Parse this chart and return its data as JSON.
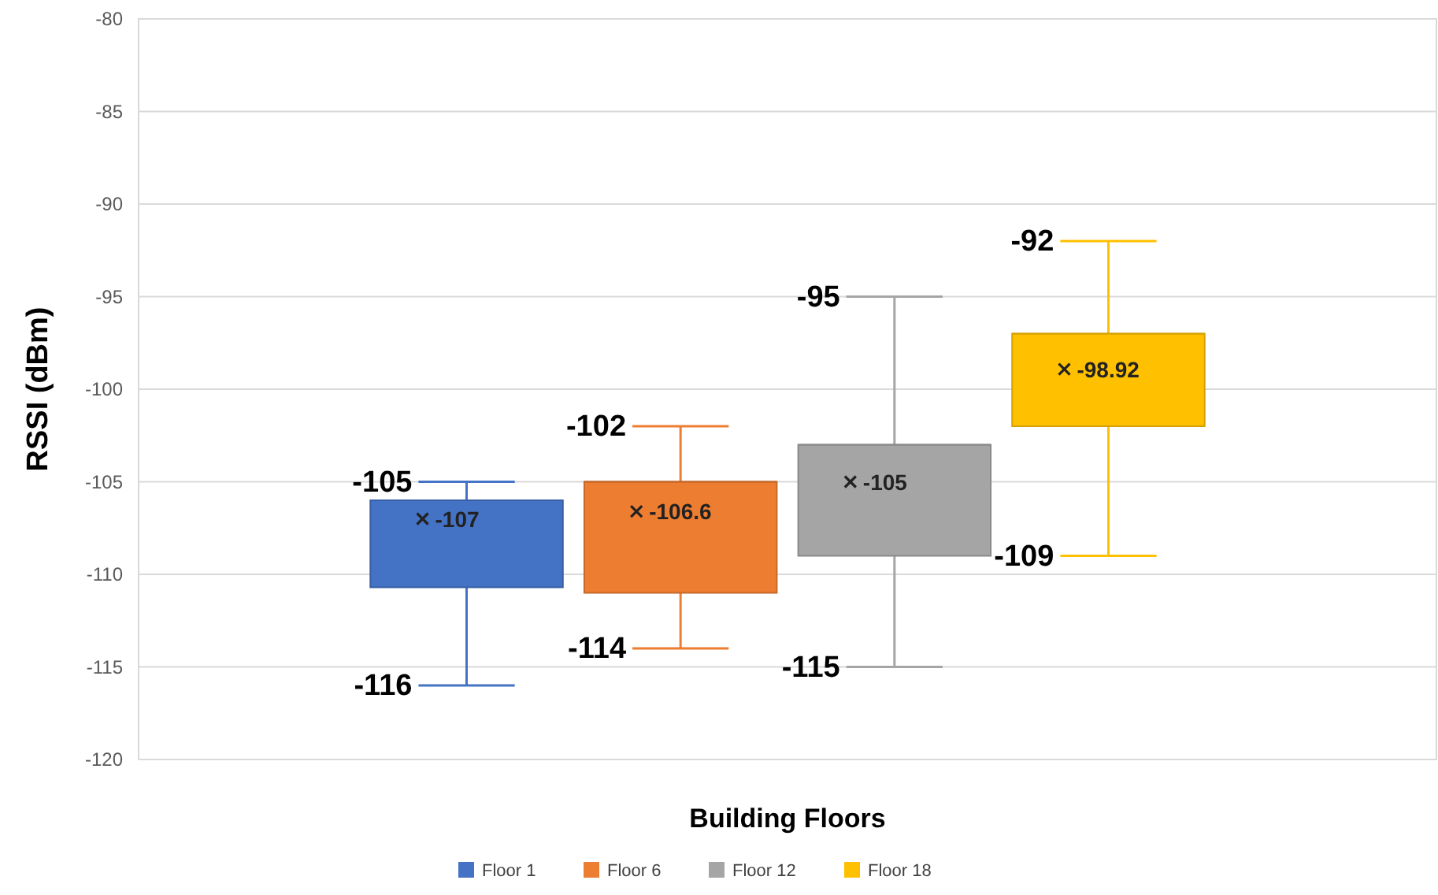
{
  "chart_data": {
    "type": "box",
    "xlabel": "Building Floors",
    "ylabel": "RSSI (dBm)",
    "categories": [
      null
    ],
    "series": [
      {
        "name": "Floor 1",
        "color": "#4472c4",
        "boxes": [
          {
            "low": -116,
            "q1": -110.7,
            "median": -106,
            "q3": -106,
            "high": -105,
            "mean": -107
          }
        ]
      },
      {
        "name": "Floor 6",
        "color": "#ed7d31",
        "boxes": [
          {
            "low": -114,
            "q1": -111,
            "median": -105,
            "q3": -105,
            "high": -102,
            "mean": -106.6
          }
        ]
      },
      {
        "name": "Floor 12",
        "color": "#a5a5a5",
        "boxes": [
          {
            "low": -115,
            "q1": -109,
            "median": -103,
            "q3": -103,
            "high": -95,
            "mean": -105
          }
        ]
      },
      {
        "name": "Floor 18",
        "color": "#ffc000",
        "boxes": [
          {
            "low": -109,
            "q1": -102,
            "median": -97,
            "q3": -97,
            "high": -92,
            "mean": -98.92
          }
        ]
      }
    ],
    "annotations": [
      "-105",
      "-107",
      "-116",
      "-102",
      "-106.6",
      "-114",
      "-95",
      "-105",
      "-115",
      "-92",
      "-98.92",
      "-109"
    ],
    "ylim": [
      -120,
      -80
    ],
    "yticks": [
      -120,
      -115,
      -110,
      -105,
      -100,
      -95,
      -90,
      -85,
      -80
    ],
    "grid": "y",
    "legend": "bottom",
    "marker": "cross"
  }
}
